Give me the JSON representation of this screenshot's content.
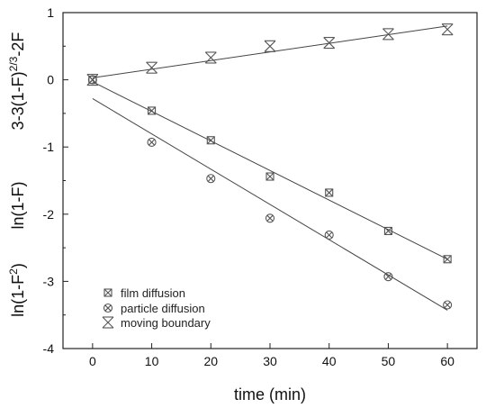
{
  "chart_data": {
    "type": "scatter",
    "title": "",
    "xlabel": "time (min)",
    "ylabels": [
      {
        "base": "3-3(1-F)",
        "sup": "2/3",
        "tail": "-2F"
      },
      {
        "base": "ln(1-F)",
        "sup": "",
        "tail": ""
      },
      {
        "base": "ln(1-F",
        "sup": "2",
        "tail": ")"
      }
    ],
    "xlim": [
      -5,
      65
    ],
    "ylim": [
      -4,
      1
    ],
    "xticks": [
      0,
      10,
      20,
      30,
      40,
      50,
      60
    ],
    "yticks": [
      -4,
      -3,
      -2,
      -1,
      0,
      1
    ],
    "legend_position": "lower-left",
    "series": [
      {
        "name": "film diffusion",
        "marker": "square-x",
        "x": [
          0,
          10,
          20,
          30,
          40,
          50,
          60
        ],
        "y": [
          0,
          -0.46,
          -0.9,
          -1.44,
          -1.68,
          -2.25,
          -2.67
        ],
        "fit": {
          "x": [
            0,
            60
          ],
          "y": [
            -0.03,
            -2.67
          ]
        }
      },
      {
        "name": "particle diffusion",
        "marker": "circle-x",
        "x": [
          0,
          10,
          20,
          30,
          40,
          50,
          60
        ],
        "y": [
          0,
          -0.93,
          -1.47,
          -2.06,
          -2.31,
          -2.93,
          -3.35
        ],
        "fit": {
          "x": [
            0,
            60
          ],
          "y": [
            -0.28,
            -3.43
          ]
        }
      },
      {
        "name": "moving boundary",
        "marker": "x-box",
        "x": [
          0,
          10,
          20,
          30,
          40,
          50,
          60
        ],
        "y": [
          0,
          0.18,
          0.33,
          0.5,
          0.55,
          0.68,
          0.75
        ],
        "fit": {
          "x": [
            0,
            60
          ],
          "y": [
            0.03,
            0.8
          ]
        }
      }
    ]
  }
}
